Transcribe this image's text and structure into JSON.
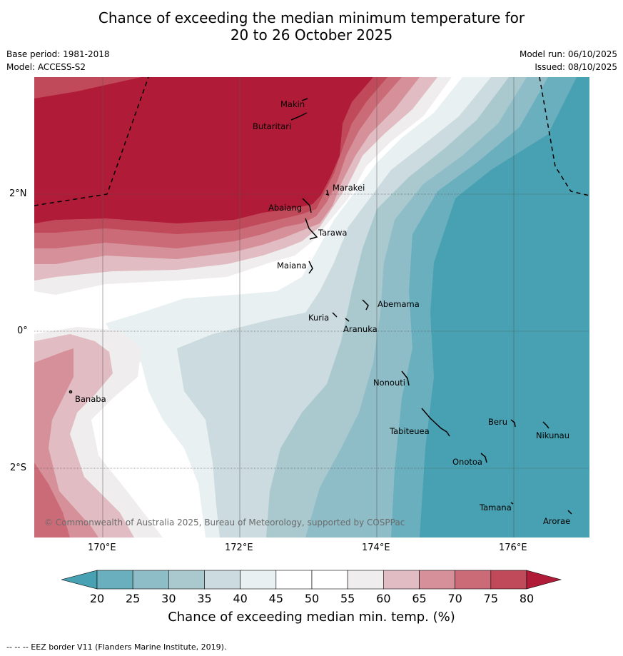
{
  "title": {
    "line1": "Chance of exceeding the median minimum temperature for",
    "line2": "20 to 26 October 2025"
  },
  "meta": {
    "base_period": "Base period: 1981-2018",
    "model": "Model: ACCESS-S2",
    "model_run": "Model run: 06/10/2025",
    "issued": "Issued: 08/10/2025"
  },
  "axes": {
    "lat": [
      "2°N",
      "0°",
      "2°S"
    ],
    "lon": [
      "170°E",
      "172°E",
      "174°E",
      "176°E"
    ]
  },
  "islands": [
    "Makin",
    "Butaritari",
    "Marakei",
    "Abaiang",
    "Tarawa",
    "Maiana",
    "Abemama",
    "Kuria",
    "Aranuka",
    "Banaba",
    "Nonouti",
    "Beru",
    "Nikunau",
    "Tabiteuea",
    "Onotoa",
    "Tamana",
    "Arorae"
  ],
  "copyright": "© Commonwealth of Australia 2025, Bureau of Meteorology, supported by COSPPac",
  "colorbar": {
    "ticks": [
      "20",
      "25",
      "30",
      "35",
      "40",
      "45",
      "50",
      "55",
      "60",
      "65",
      "70",
      "75",
      "80"
    ],
    "colors": [
      "#6aafbd",
      "#8ebdc8",
      "#a9c9cf",
      "#cbdbdf",
      "#e9f0f2",
      "#ffffff",
      "#ffffff",
      "#efeded",
      "#e1bcc2",
      "#d69099",
      "#cc6b78",
      "#c14a5a"
    ],
    "under_color": "#48a1b2",
    "over_color": "#b01c38",
    "title": "Chance of exceeding median min. temp. (%)"
  },
  "footnote": "--  --  -- EEZ border V11 (Flanders Marine Institute, 2019)."
}
